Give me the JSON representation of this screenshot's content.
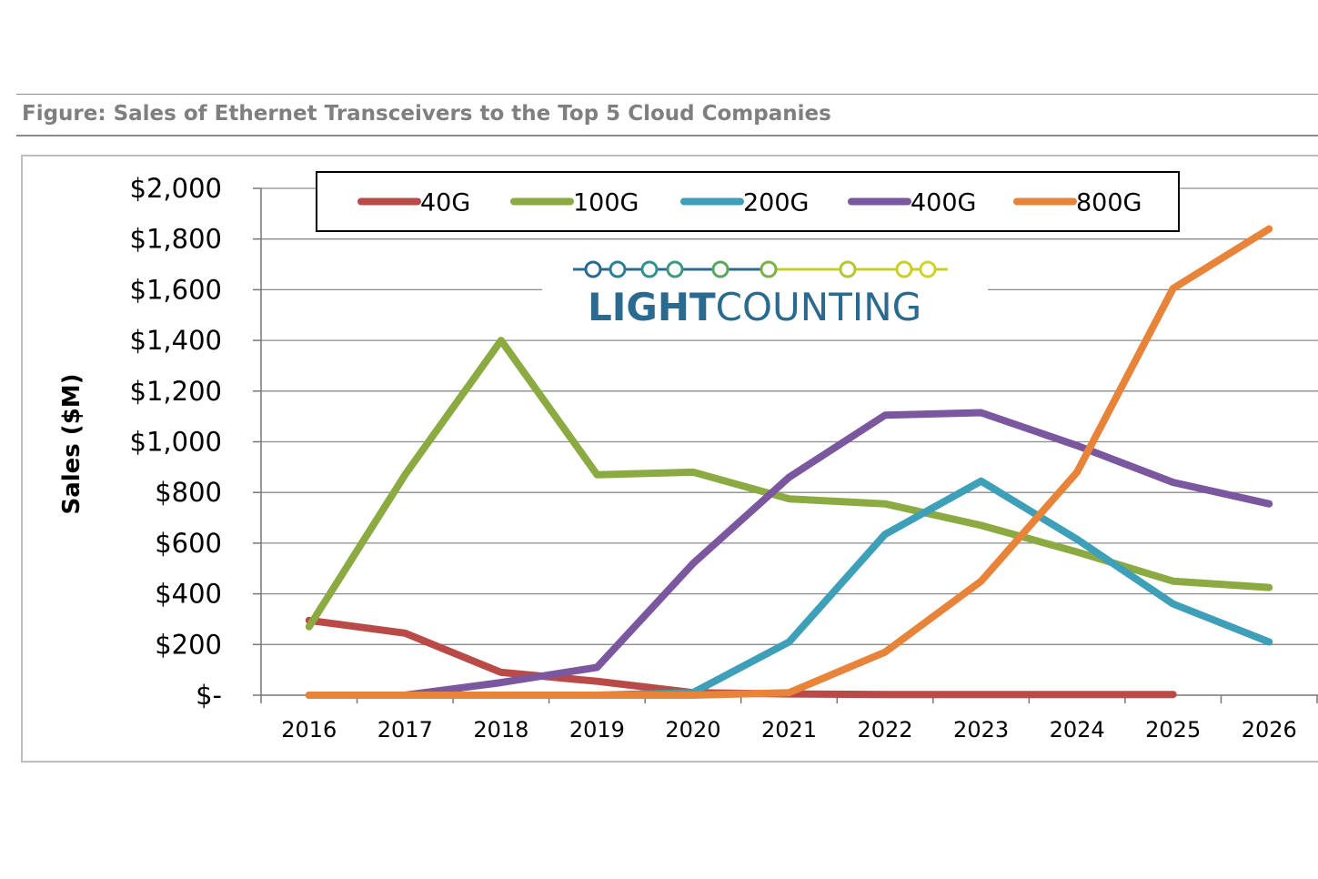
{
  "figure": {
    "caption": "Figure: Sales of Ethernet Transceivers to the Top 5 Cloud Companies"
  },
  "logo": {
    "text_bold": "LIGHT",
    "text_regular": "COUNTING",
    "color_primary": "#2b6a8f",
    "color_accent": "#c9cf2a"
  },
  "chart_data": {
    "type": "line",
    "ylabel": "Sales ($M)",
    "xlabel": "",
    "categories": [
      "2016",
      "2017",
      "2018",
      "2019",
      "2020",
      "2021",
      "2022",
      "2023",
      "2024",
      "2025",
      "2026"
    ],
    "ylim": [
      0,
      2000
    ],
    "yticks": [
      0,
      200,
      400,
      600,
      800,
      1000,
      1200,
      1400,
      1600,
      1800,
      2000
    ],
    "ytick_labels": [
      "$-",
      "$200",
      "$400",
      "$600",
      "$800",
      "$1,000",
      "$1,200",
      "$1,400",
      "$1,600",
      "$1,800",
      "$2,000"
    ],
    "grid": true,
    "legend_position": "top",
    "series": [
      {
        "name": "40G",
        "color": "#b94a48",
        "values": [
          295,
          245,
          90,
          55,
          10,
          5,
          3,
          3,
          3,
          3,
          null
        ]
      },
      {
        "name": "100G",
        "color": "#8bab42",
        "values": [
          270,
          870,
          1400,
          870,
          880,
          775,
          755,
          670,
          565,
          450,
          425
        ]
      },
      {
        "name": "200G",
        "color": "#3d9fb8",
        "values": [
          0,
          0,
          0,
          0,
          10,
          210,
          635,
          845,
          615,
          360,
          210
        ]
      },
      {
        "name": "400G",
        "color": "#7a579e",
        "values": [
          0,
          0,
          50,
          110,
          520,
          860,
          1105,
          1115,
          985,
          840,
          755
        ]
      },
      {
        "name": "800G",
        "color": "#e8843a",
        "values": [
          0,
          0,
          0,
          0,
          0,
          10,
          170,
          450,
          880,
          1605,
          1840
        ]
      }
    ]
  }
}
